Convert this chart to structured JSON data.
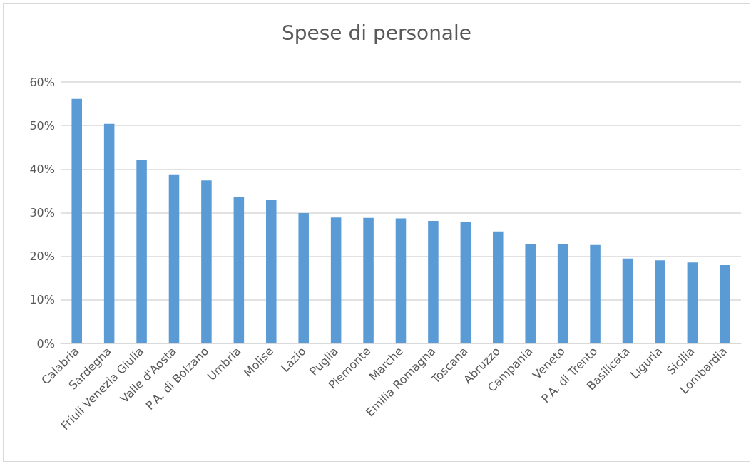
{
  "chart_data": {
    "type": "bar",
    "title": "Spese di personale",
    "categories": [
      "Calabria",
      "Sardegna",
      "Friuli Venezia Giulia",
      "Valle d'Aosta",
      "P.A. di Bolzano",
      "Umbria",
      "Molise",
      "Lazio",
      "Puglia",
      "Piemonte",
      "Marche",
      "Emilia Romagna",
      "Toscana",
      "Abruzzo",
      "Campania",
      "Veneto",
      "P.A. di Trento",
      "Basilicata",
      "Liguria",
      "Sicilia",
      "Lombardia"
    ],
    "values": [
      56.1,
      50.4,
      42.2,
      38.8,
      37.4,
      33.6,
      32.9,
      29.9,
      28.9,
      28.8,
      28.7,
      28.1,
      27.8,
      25.7,
      22.9,
      22.9,
      22.6,
      19.5,
      19.1,
      18.6,
      18.0
    ],
    "color": "#5b9bd5",
    "ylim": [
      0,
      60
    ],
    "yticks": [
      {
        "value": 0,
        "label": "0%"
      },
      {
        "value": 10,
        "label": "10%"
      },
      {
        "value": 20,
        "label": "20%"
      },
      {
        "value": 30,
        "label": "30%"
      },
      {
        "value": 40,
        "label": "40%"
      },
      {
        "value": 50,
        "label": "50%"
      },
      {
        "value": 60,
        "label": "60%"
      }
    ],
    "grid": "y"
  }
}
